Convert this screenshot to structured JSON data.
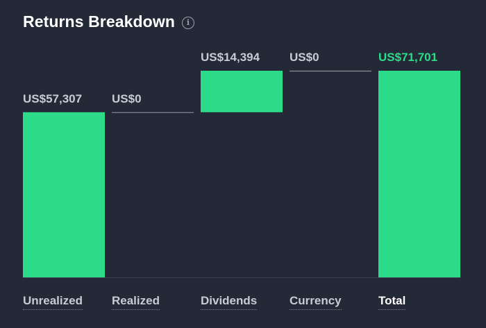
{
  "card": {
    "title": "Returns Breakdown",
    "info_icon": "info-icon"
  },
  "colors": {
    "background": "#232936",
    "bar": "#2ddc88",
    "connector": "#8a909c",
    "label": "#c7ccd4",
    "total_label": "#2ddc88"
  },
  "chart_data": {
    "type": "bar",
    "subtype": "waterfall",
    "categories": [
      "Unrealized",
      "Realized",
      "Dividends",
      "Currency",
      "Total"
    ],
    "values": [
      57307,
      0,
      14394,
      0,
      71701
    ],
    "value_labels": [
      "US$57,307",
      "US$0",
      "US$14,394",
      "US$0",
      "US$71,701"
    ],
    "is_total": [
      false,
      false,
      false,
      false,
      true
    ],
    "ylim": [
      0,
      71701
    ],
    "grid": false,
    "legend": "none"
  }
}
